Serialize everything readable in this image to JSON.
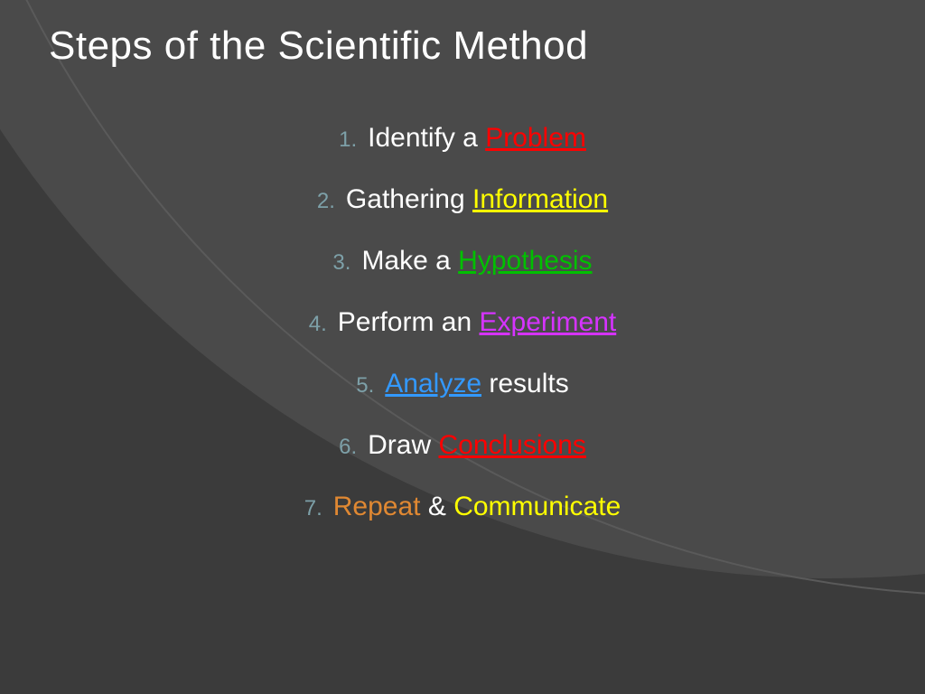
{
  "slide": {
    "background_color": "#3b3b3b",
    "arc1_color": "#4a4a4a",
    "arc1_border": "#6a6a6a",
    "arc2_border": "#5a5a5a",
    "title": {
      "text": "Steps of the Scientific Method",
      "color": "#ffffff",
      "fontsize": 44
    },
    "list": {
      "number_color": "#7da0a8",
      "number_fontsize": 24,
      "text_fontsize": 30,
      "line_height": 50,
      "items": [
        {
          "segments": [
            {
              "text": "Identify a ",
              "color": "#ffffff",
              "underline": false
            },
            {
              "text": "Problem",
              "color": "#ff0000",
              "underline": true
            }
          ]
        },
        {
          "segments": [
            {
              "text": "Gathering ",
              "color": "#ffffff",
              "underline": false
            },
            {
              "text": "Information",
              "color": "#ffff00",
              "underline": true
            }
          ]
        },
        {
          "segments": [
            {
              "text": "Make a ",
              "color": "#ffffff",
              "underline": false
            },
            {
              "text": "Hypothesis",
              "color": "#00c000",
              "underline": true
            }
          ]
        },
        {
          "segments": [
            {
              "text": "Perform an ",
              "color": "#ffffff",
              "underline": false
            },
            {
              "text": "Experiment",
              "color": "#d633ff",
              "underline": true
            }
          ]
        },
        {
          "segments": [
            {
              "text": "Analyze",
              "color": "#3399ff",
              "underline": true
            },
            {
              "text": " results",
              "color": "#ffffff",
              "underline": false
            }
          ]
        },
        {
          "segments": [
            {
              "text": "Draw ",
              "color": "#ffffff",
              "underline": false
            },
            {
              "text": "Conclusions",
              "color": "#ff0000",
              "underline": true
            }
          ]
        },
        {
          "segments": [
            {
              "text": "Repeat",
              "color": "#e08832",
              "underline": false
            },
            {
              "text": " & ",
              "color": "#ffffff",
              "underline": false
            },
            {
              "text": "Communicate",
              "color": "#ffff00",
              "underline": false
            }
          ]
        }
      ]
    }
  }
}
